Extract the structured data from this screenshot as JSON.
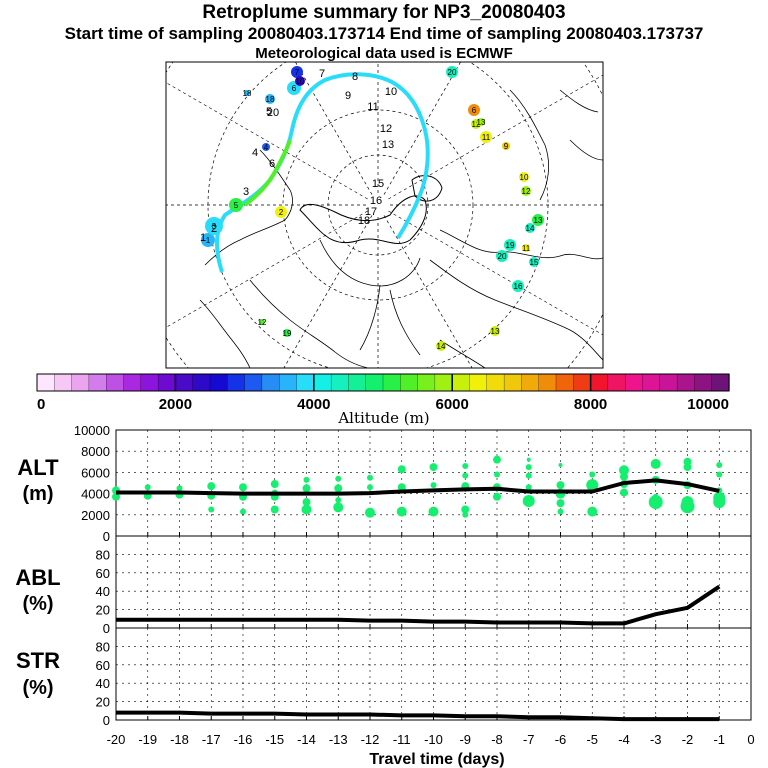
{
  "header": {
    "title": "Retroplume summary for NP3_20080403",
    "sampling_line": "Start time of sampling 20080403.173714     End time of sampling 20080403.173737",
    "met_line": "Meteorological data used is ECMWF"
  },
  "colorbar": {
    "label": "Altitude (m)",
    "ticks": [
      "0",
      "2000",
      "4000",
      "6000",
      "8000",
      "10000"
    ],
    "colors": [
      "#ffe6ff",
      "#f5c8f5",
      "#eba5f0",
      "#d27deb",
      "#be50e6",
      "#aa28e1",
      "#8c14dc",
      "#6e0ad2",
      "#4b0ac8",
      "#2d0ac8",
      "#140ad2",
      "#1432e6",
      "#1e5af0",
      "#288cf5",
      "#28b4fa",
      "#28dcfa",
      "#14f0e6",
      "#14f0be",
      "#14f096",
      "#14f06e",
      "#28f046",
      "#50f028",
      "#78f01e",
      "#a0f014",
      "#c8f00a",
      "#f0f00a",
      "#f0dc0a",
      "#f0c80a",
      "#f0aa0a",
      "#f08c0a",
      "#f0640a",
      "#f03c14",
      "#f0142d",
      "#f01464",
      "#f0148c",
      "#dc1496",
      "#c81496",
      "#aa148c",
      "#8c1482",
      "#6e1478"
    ]
  },
  "map": {
    "labels": [
      {
        "t": "1",
        "c": "#ffffff"
      },
      {
        "t": "2",
        "c": "#ffffff"
      },
      {
        "t": "3",
        "c": "#ffffff"
      },
      {
        "t": "4",
        "c": "#ffffff"
      },
      {
        "t": "5",
        "c": "#ffffff"
      },
      {
        "t": "6",
        "c": "#ffffff"
      },
      {
        "t": "7",
        "c": "#ffffff"
      },
      {
        "t": "8",
        "c": "#ffffff"
      },
      {
        "t": "9",
        "c": "#ffffff"
      },
      {
        "t": "10",
        "c": "#ffffff"
      },
      {
        "t": "11",
        "c": "#ffffff"
      },
      {
        "t": "12",
        "c": "#ffffff"
      },
      {
        "t": "13",
        "c": "#ffffff"
      },
      {
        "t": "15",
        "c": "#ffffff"
      },
      {
        "t": "16",
        "c": "#ffffff"
      },
      {
        "t": "17",
        "c": "#ffffff"
      },
      {
        "t": "18",
        "c": "#ffffff"
      },
      {
        "t": "20",
        "c": "#ffffff"
      }
    ],
    "cluster_markers": [
      {
        "t": "20",
        "c": "#14f0be"
      },
      {
        "t": "6",
        "c": "#f08c0a"
      },
      {
        "t": "12",
        "c": "#c8f00a"
      },
      {
        "t": "13",
        "c": "#a0f014"
      },
      {
        "t": "11",
        "c": "#f0f00a"
      },
      {
        "t": "9",
        "c": "#f0c80a"
      },
      {
        "t": "10",
        "c": "#f0f00a"
      },
      {
        "t": "12",
        "c": "#a0f014"
      },
      {
        "t": "13",
        "c": "#28f046"
      },
      {
        "t": "14",
        "c": "#14f0be"
      },
      {
        "t": "19",
        "c": "#14f0be"
      },
      {
        "t": "20",
        "c": "#14f0be"
      },
      {
        "t": "11",
        "c": "#f0f00a"
      },
      {
        "t": "15",
        "c": "#14f0be"
      },
      {
        "t": "16",
        "c": "#14f0be"
      },
      {
        "t": "14",
        "c": "#c8f00a"
      },
      {
        "t": "13",
        "c": "#c8f00a"
      },
      {
        "t": "19",
        "c": "#28f046"
      },
      {
        "t": "12",
        "c": "#50f028"
      },
      {
        "t": "18",
        "c": "#28b4fa"
      },
      {
        "t": "1",
        "c": "#28b4fa"
      },
      {
        "t": "3",
        "c": "#28dcfa"
      },
      {
        "t": "5",
        "c": "#28f046"
      },
      {
        "t": "2",
        "c": "#f0f00a"
      },
      {
        "t": "4",
        "c": "#1e5af0"
      },
      {
        "t": "6",
        "c": "#28dcfa"
      },
      {
        "t": "7",
        "c": "#1432e6"
      },
      {
        "t": "10",
        "c": "#2d0ac8"
      },
      {
        "t": "18",
        "c": "#28b4fa"
      }
    ]
  },
  "chart_data": [
    {
      "type": "scatter",
      "title": "",
      "ylabel": "ALT (m)",
      "xlabel": "",
      "xlim": [
        -20,
        0
      ],
      "ylim": [
        0,
        10000
      ],
      "yticks": [
        "10000",
        "8000",
        "6000",
        "4000",
        "2000",
        "0"
      ],
      "mean_line": {
        "x": [
          -20,
          -19,
          -18,
          -17,
          -16,
          -15,
          -14,
          -13,
          -12,
          -11,
          -10,
          -9,
          -8,
          -7,
          -6,
          -5,
          -4,
          -3,
          -2,
          -1
        ],
        "y": [
          4100,
          4100,
          4100,
          4050,
          4000,
          4000,
          4000,
          4000,
          4050,
          4200,
          4300,
          4400,
          4450,
          4200,
          4200,
          4200,
          5000,
          5250,
          4900,
          4250
        ]
      },
      "points": [
        {
          "x": -20,
          "y": 4300,
          "s": 4
        },
        {
          "x": -20,
          "y": 3700,
          "s": 4
        },
        {
          "x": -19,
          "y": 4600,
          "s": 3
        },
        {
          "x": -19,
          "y": 3800,
          "s": 4
        },
        {
          "x": -18,
          "y": 4500,
          "s": 3
        },
        {
          "x": -18,
          "y": 3900,
          "s": 4
        },
        {
          "x": -17,
          "y": 4700,
          "s": 4
        },
        {
          "x": -17,
          "y": 3800,
          "s": 4
        },
        {
          "x": -17,
          "y": 2500,
          "s": 3
        },
        {
          "x": -16,
          "y": 4600,
          "s": 4
        },
        {
          "x": -16,
          "y": 3700,
          "s": 4
        },
        {
          "x": -16,
          "y": 2300,
          "s": 3
        },
        {
          "x": -15,
          "y": 4900,
          "s": 4
        },
        {
          "x": -15,
          "y": 4100,
          "s": 3
        },
        {
          "x": -15,
          "y": 3700,
          "s": 4
        },
        {
          "x": -15,
          "y": 2500,
          "s": 4
        },
        {
          "x": -14,
          "y": 5300,
          "s": 3
        },
        {
          "x": -14,
          "y": 4500,
          "s": 4
        },
        {
          "x": -14,
          "y": 3200,
          "s": 4
        },
        {
          "x": -14,
          "y": 2500,
          "s": 5
        },
        {
          "x": -13,
          "y": 5400,
          "s": 3
        },
        {
          "x": -13,
          "y": 4500,
          "s": 4
        },
        {
          "x": -13,
          "y": 3400,
          "s": 3
        },
        {
          "x": -13,
          "y": 2700,
          "s": 5
        },
        {
          "x": -12,
          "y": 5500,
          "s": 3
        },
        {
          "x": -12,
          "y": 4600,
          "s": 3
        },
        {
          "x": -12,
          "y": 2200,
          "s": 5
        },
        {
          "x": -11,
          "y": 6300,
          "s": 4
        },
        {
          "x": -11,
          "y": 4600,
          "s": 4
        },
        {
          "x": -11,
          "y": 2300,
          "s": 5
        },
        {
          "x": -10,
          "y": 6500,
          "s": 4
        },
        {
          "x": -10,
          "y": 4800,
          "s": 3
        },
        {
          "x": -10,
          "y": 2300,
          "s": 5
        },
        {
          "x": -9,
          "y": 6600,
          "s": 3
        },
        {
          "x": -9,
          "y": 5700,
          "s": 3
        },
        {
          "x": -9,
          "y": 4700,
          "s": 4
        },
        {
          "x": -9,
          "y": 2500,
          "s": 4
        },
        {
          "x": -9,
          "y": 2000,
          "s": 3
        },
        {
          "x": -8,
          "y": 7200,
          "s": 4
        },
        {
          "x": -8,
          "y": 5800,
          "s": 3
        },
        {
          "x": -8,
          "y": 4600,
          "s": 4
        },
        {
          "x": -8,
          "y": 3700,
          "s": 4
        },
        {
          "x": -7,
          "y": 7200,
          "s": 2
        },
        {
          "x": -7,
          "y": 6500,
          "s": 3
        },
        {
          "x": -7,
          "y": 5700,
          "s": 3
        },
        {
          "x": -7,
          "y": 4600,
          "s": 3
        },
        {
          "x": -7,
          "y": 3300,
          "s": 6
        },
        {
          "x": -6,
          "y": 6700,
          "s": 2
        },
        {
          "x": -6,
          "y": 4800,
          "s": 4
        },
        {
          "x": -6,
          "y": 4000,
          "s": 5
        },
        {
          "x": -6,
          "y": 3100,
          "s": 4
        },
        {
          "x": -6,
          "y": 2300,
          "s": 3
        },
        {
          "x": -5,
          "y": 5800,
          "s": 3
        },
        {
          "x": -5,
          "y": 4800,
          "s": 6
        },
        {
          "x": -5,
          "y": 2300,
          "s": 5
        },
        {
          "x": -4,
          "y": 6200,
          "s": 5
        },
        {
          "x": -4,
          "y": 5600,
          "s": 4
        },
        {
          "x": -4,
          "y": 4900,
          "s": 4
        },
        {
          "x": -4,
          "y": 4100,
          "s": 4
        },
        {
          "x": -3,
          "y": 6800,
          "s": 5
        },
        {
          "x": -3,
          "y": 5300,
          "s": 4
        },
        {
          "x": -3,
          "y": 3700,
          "s": 3
        },
        {
          "x": -3,
          "y": 3200,
          "s": 7
        },
        {
          "x": -2,
          "y": 7000,
          "s": 4
        },
        {
          "x": -2,
          "y": 6500,
          "s": 4
        },
        {
          "x": -2,
          "y": 4800,
          "s": 4
        },
        {
          "x": -2,
          "y": 3200,
          "s": 6
        },
        {
          "x": -2,
          "y": 2800,
          "s": 7
        },
        {
          "x": -1,
          "y": 6700,
          "s": 3
        },
        {
          "x": -1,
          "y": 5800,
          "s": 3
        },
        {
          "x": -1,
          "y": 4300,
          "s": 3
        },
        {
          "x": -1,
          "y": 3600,
          "s": 6
        },
        {
          "x": -1,
          "y": 3200,
          "s": 6
        }
      ]
    },
    {
      "type": "line",
      "ylabel": "ABL (%)",
      "xlim": [
        -20,
        0
      ],
      "ylim": [
        0,
        100
      ],
      "yticks": [
        "80",
        "60",
        "40",
        "20",
        "0"
      ],
      "x": [
        -20,
        -19,
        -18,
        -17,
        -16,
        -15,
        -14,
        -13,
        -12,
        -11,
        -10,
        -9,
        -8,
        -7,
        -6,
        -5,
        -4,
        -3,
        -2,
        -1
      ],
      "y": [
        9,
        9,
        9,
        9,
        9,
        9,
        9,
        9,
        8,
        8,
        7,
        7,
        6,
        6,
        6,
        5,
        5,
        15,
        22,
        45
      ]
    },
    {
      "type": "line",
      "ylabel": "STR (%)",
      "xlabel": "Travel time (days)",
      "xlim": [
        -20,
        0
      ],
      "ylim": [
        0,
        100
      ],
      "yticks": [
        "80",
        "60",
        "40",
        "20",
        "0"
      ],
      "xticks": [
        "-20",
        "-19",
        "-18",
        "-17",
        "-16",
        "-15",
        "-14",
        "-13",
        "-12",
        "-11",
        "-10",
        "-9",
        "-8",
        "-7",
        "-6",
        "-5",
        "-4",
        "-3",
        "-2",
        "-1",
        "0"
      ],
      "x": [
        -20,
        -19,
        -18,
        -17,
        -16,
        -15,
        -14,
        -13,
        -12,
        -11,
        -10,
        -9,
        -8,
        -7,
        -6,
        -5,
        -4,
        -3,
        -2,
        -1
      ],
      "y": [
        8,
        8,
        8,
        7,
        7,
        7,
        6,
        6,
        6,
        5,
        5,
        4,
        4,
        3,
        3,
        2,
        1,
        1,
        1,
        1
      ]
    }
  ],
  "panel_labels": {
    "alt_top": "ALT",
    "alt_unit": "(m)",
    "abl_top": "ABL",
    "abl_unit": "(%)",
    "str_top": "STR",
    "str_unit": "(%)"
  }
}
